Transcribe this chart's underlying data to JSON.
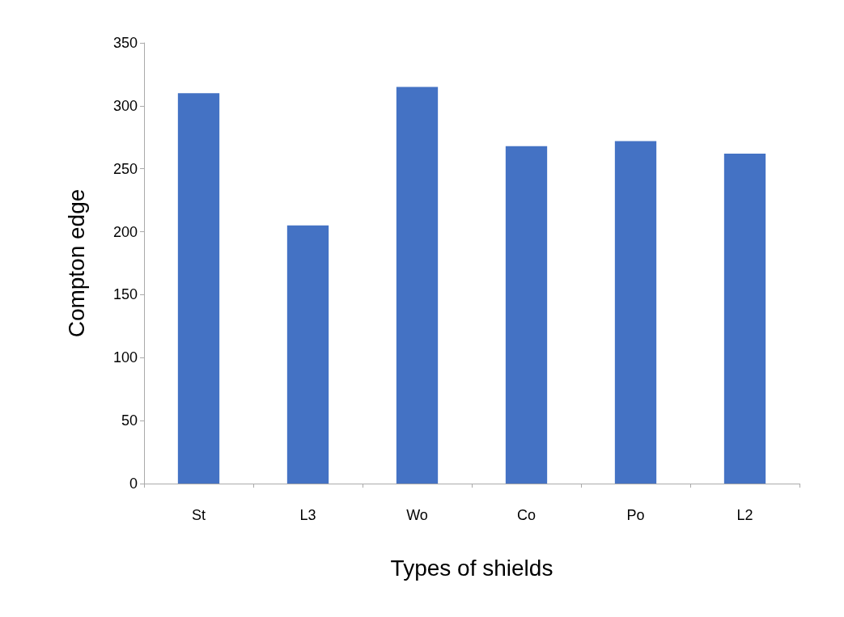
{
  "chart_data": {
    "type": "bar",
    "xlabel": "Types of shields",
    "ylabel": "Compton edge",
    "categories": [
      "St",
      "L3",
      "Wo",
      "Co",
      "Po",
      "L2"
    ],
    "values": [
      310,
      205,
      315,
      268,
      272,
      262
    ],
    "color": "#4472c4",
    "ylim": [
      0,
      350
    ],
    "yticks": [
      0,
      50,
      100,
      150,
      200,
      250,
      300,
      350
    ],
    "grid": false
  }
}
